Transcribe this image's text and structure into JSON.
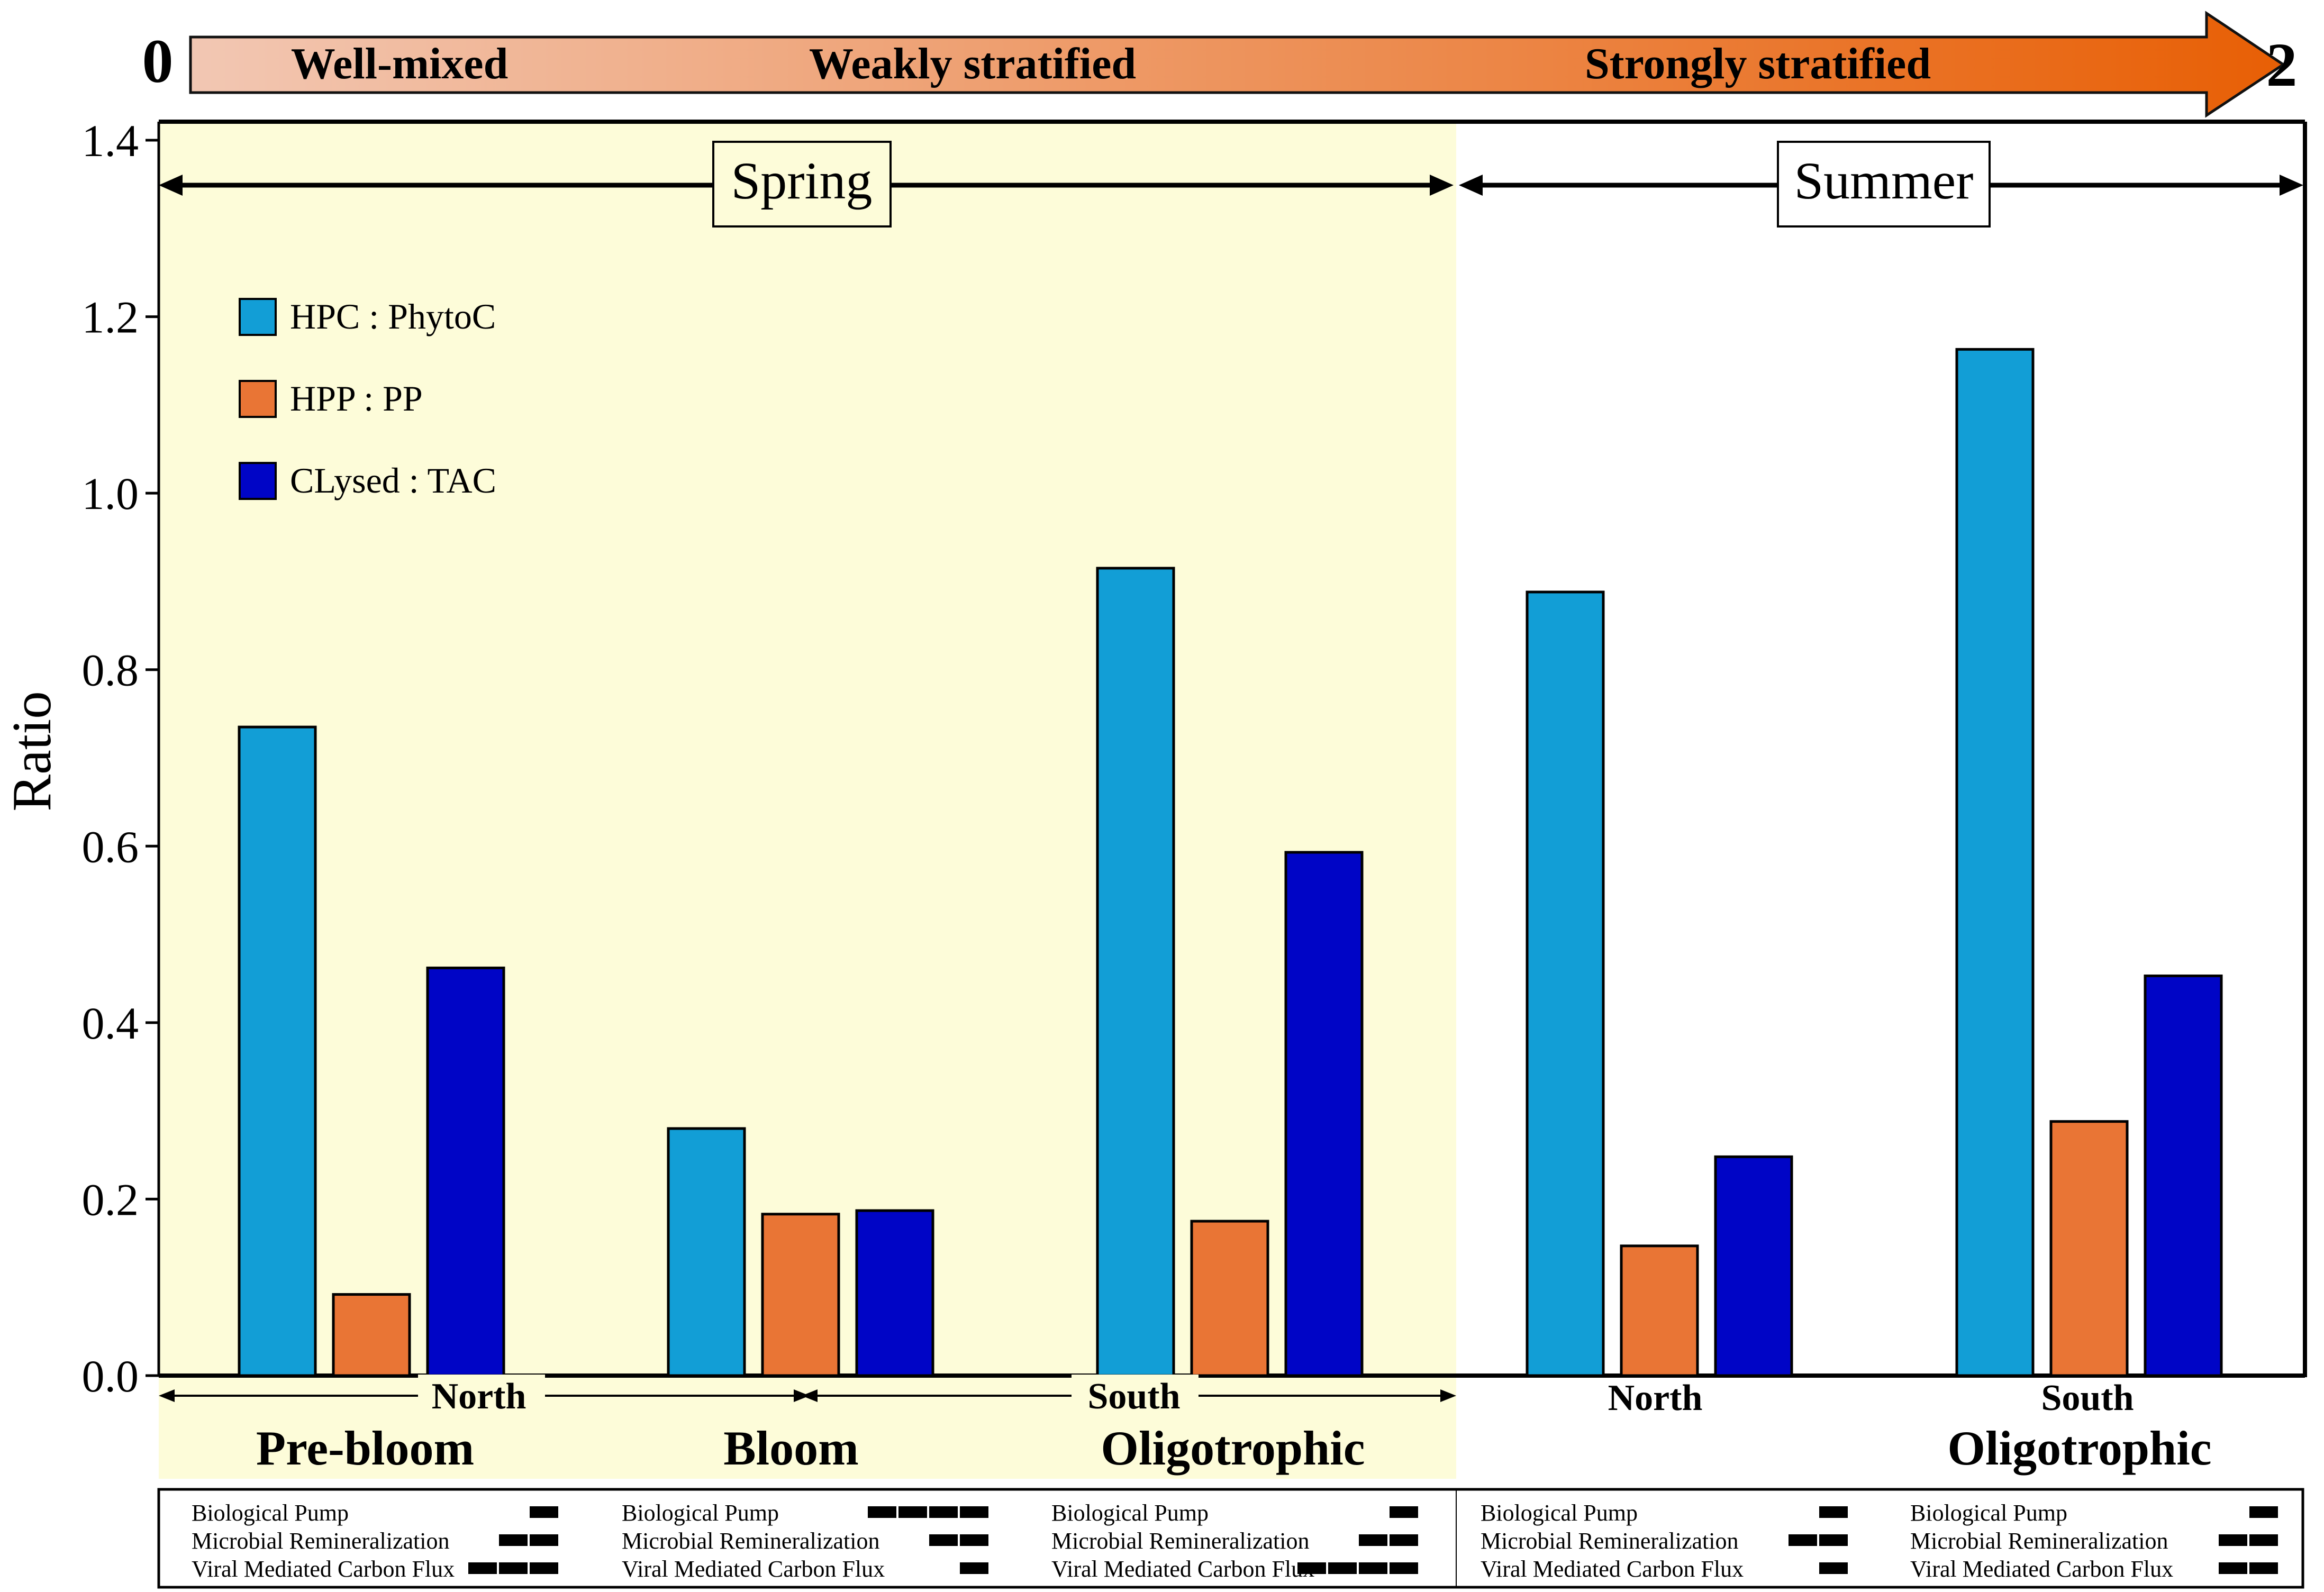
{
  "stratification": {
    "start_label": "0",
    "end_label": "2",
    "phases": [
      "Well-mixed",
      "Weakly stratified",
      "Strongly stratified"
    ],
    "color_light": "#f2c7b3",
    "color_dark": "#e85f05"
  },
  "seasons": [
    {
      "label": "Spring",
      "background": "#fdfcd9"
    },
    {
      "label": "Summer",
      "background": "#ffffff"
    }
  ],
  "chart_data": {
    "type": "bar",
    "ylabel": "Ratio",
    "ylim": [
      0,
      1.4
    ],
    "yticks": [
      "0.0",
      "0.2",
      "0.4",
      "0.6",
      "0.8",
      "1.0",
      "1.2",
      "1.4"
    ],
    "groups": [
      {
        "region": "North",
        "phase": "Pre-bloom",
        "season": "Spring"
      },
      {
        "region": "",
        "phase": "Bloom",
        "season": "Spring"
      },
      {
        "region": "South",
        "phase": "Oligotrophic",
        "season": "Spring"
      },
      {
        "region": "North",
        "phase": "",
        "season": "Summer"
      },
      {
        "region": "South",
        "phase": "Oligotrophic",
        "season": "Summer"
      }
    ],
    "series": [
      {
        "name": "HPC : PhytoC",
        "color": "#129ed6",
        "values": [
          0.735,
          0.28,
          0.915,
          0.888,
          1.163
        ]
      },
      {
        "name": "HPP : PP",
        "color": "#e97535",
        "values": [
          0.092,
          0.183,
          0.175,
          0.147,
          0.288
        ]
      },
      {
        "name": "CLysed : TAC",
        "color": "#0005c6",
        "values": [
          0.462,
          0.187,
          0.593,
          0.248,
          0.453
        ]
      }
    ]
  },
  "flux_table": {
    "rows": [
      "Biological Pump",
      "Microbial Remineralization",
      "Viral Mediated Carbon Flux"
    ],
    "levels": [
      [
        1,
        2,
        3
      ],
      [
        4,
        2,
        1
      ],
      [
        1,
        2,
        4
      ],
      [
        1,
        2,
        1
      ],
      [
        1,
        2,
        2
      ]
    ]
  }
}
